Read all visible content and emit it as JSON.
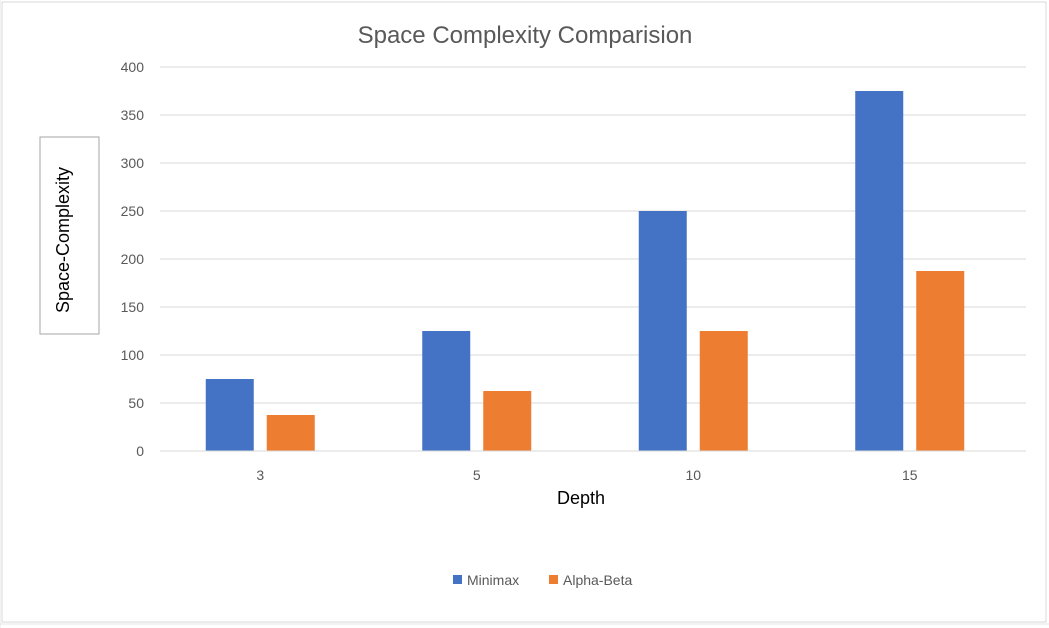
{
  "chart_data": {
    "type": "bar",
    "title": "Space Complexity Comparision",
    "xlabel": "Depth",
    "ylabel": "Space-Complexity",
    "categories": [
      "3",
      "5",
      "10",
      "15"
    ],
    "series": [
      {
        "name": "Minimax",
        "values": [
          75,
          125,
          250,
          375
        ],
        "color": "#4472C4"
      },
      {
        "name": "Alpha-Beta",
        "values": [
          37.5,
          62.5,
          125,
          187.5
        ],
        "color": "#ED7D31"
      }
    ],
    "ylim": [
      0,
      400
    ],
    "yticks": [
      "0",
      "50",
      "100",
      "150",
      "200",
      "250",
      "300",
      "350",
      "400"
    ],
    "grid": true,
    "legend_position": "bottom"
  }
}
